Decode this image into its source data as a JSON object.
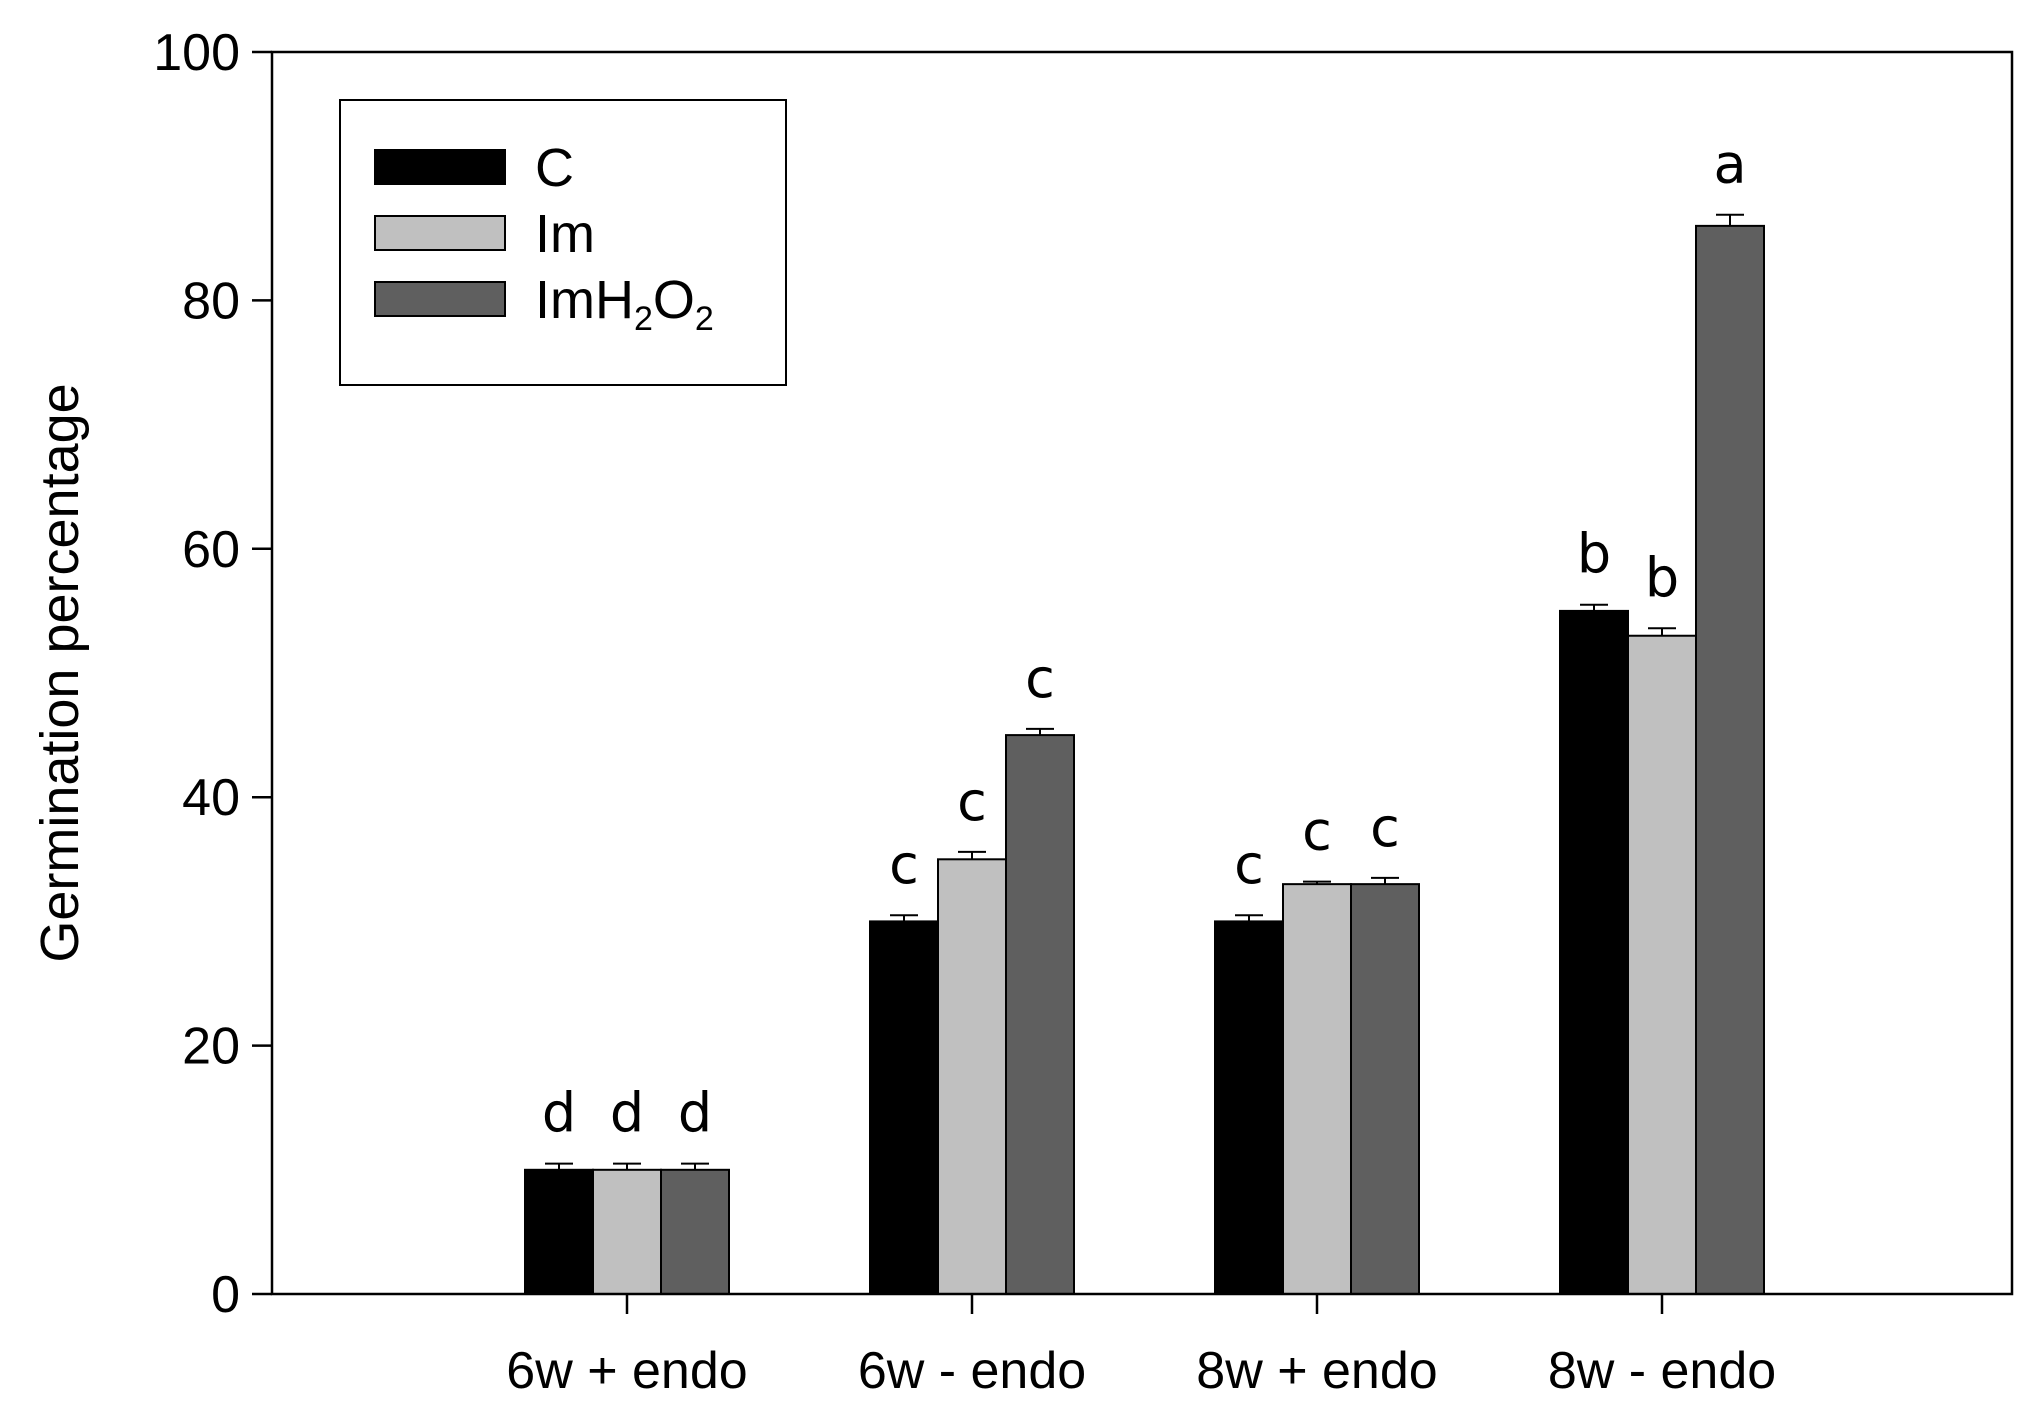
{
  "chart_data": {
    "type": "bar",
    "title": "",
    "xlabel": "",
    "ylabel": "Germination percentage",
    "ylim": [
      0,
      100
    ],
    "yticks": [
      0,
      20,
      40,
      60,
      80,
      100
    ],
    "categories": [
      "6w + endo",
      "6w - endo",
      "8w + endo",
      "8w - endo"
    ],
    "series": [
      {
        "name": "C",
        "color": "#000000",
        "values": [
          10,
          30,
          30,
          55
        ],
        "errors": [
          0.5,
          0.5,
          0.5,
          0.5
        ],
        "letters": [
          "d",
          "c",
          "c",
          "b"
        ]
      },
      {
        "name": "Im",
        "color": "#c0c0c0",
        "values": [
          10,
          35,
          33,
          53
        ],
        "errors": [
          0.5,
          0.6,
          0.2,
          0.6
        ],
        "letters": [
          "d",
          "c",
          "c",
          "b"
        ]
      },
      {
        "name": "ImH2O2",
        "color": "#5f5f5f",
        "values": [
          10,
          45,
          33,
          86
        ],
        "errors": [
          0.5,
          0.5,
          0.5,
          0.9
        ],
        "letters": [
          "d",
          "c",
          "c",
          "a"
        ]
      }
    ],
    "legend": {
      "placement": "top-left",
      "entries": [
        {
          "base": "C",
          "sub1": "",
          "mid": "",
          "sub2": ""
        },
        {
          "base": "Im",
          "sub1": "",
          "mid": "",
          "sub2": ""
        },
        {
          "base": "ImH",
          "sub1": "2",
          "mid": "O",
          "sub2": "2"
        }
      ]
    },
    "grid": false
  }
}
